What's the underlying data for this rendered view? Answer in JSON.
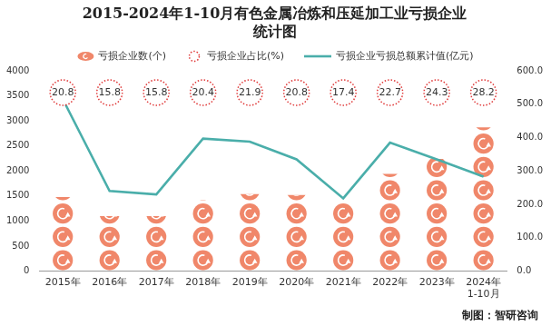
{
  "chart_data": {
    "type": "bar",
    "title": "2015-2024年1-10月有色金属冶炼和压延加工业亏损企业\n统计图",
    "categories": [
      "2015年",
      "2016年",
      "2017年",
      "2018年",
      "2019年",
      "2020年",
      "2021年",
      "2022年",
      "2023年",
      "2024年\n1-10月"
    ],
    "series": [
      {
        "name": "亏损企业数(个)",
        "type": "bar",
        "marker": "coin",
        "color": "#f0876a",
        "values": [
          1480,
          1100,
          1100,
          1420,
          1540,
          1520,
          1380,
          1940,
          2240,
          2870
        ]
      },
      {
        "name": "亏损企业占比(%)",
        "type": "scatter",
        "marker": "circle",
        "line_style": "dotted",
        "color": "#e03a3a",
        "data_labels": true,
        "values": [
          20.8,
          15.8,
          15.8,
          20.4,
          21.9,
          20.8,
          17.4,
          22.7,
          24.3,
          28.2
        ]
      },
      {
        "name": "亏损企业亏损总额累计值(亿元)",
        "type": "line",
        "axis": "y2",
        "color": "#4aaeaa",
        "values": [
          515,
          240,
          230,
          397,
          388,
          335,
          218,
          385,
          335,
          283
        ]
      }
    ],
    "ylim": [
      0,
      4000
    ],
    "yticks": [
      0,
      500,
      1000,
      1500,
      2000,
      2500,
      3000,
      3500,
      4000
    ],
    "y2lim": [
      0,
      600
    ],
    "y2ticks": [
      {
        "value": 0,
        "label": "0.0"
      },
      {
        "value": 100,
        "label": "100.0"
      },
      {
        "value": 200,
        "label": "200.0"
      },
      {
        "value": 300,
        "label": "300.0"
      },
      {
        "value": 400,
        "label": "400.0"
      },
      {
        "value": 500,
        "label": "500.0"
      },
      {
        "value": 600,
        "label": "600.0"
      }
    ],
    "grid": false,
    "legend": "top",
    "source": "制图：智研咨询"
  }
}
